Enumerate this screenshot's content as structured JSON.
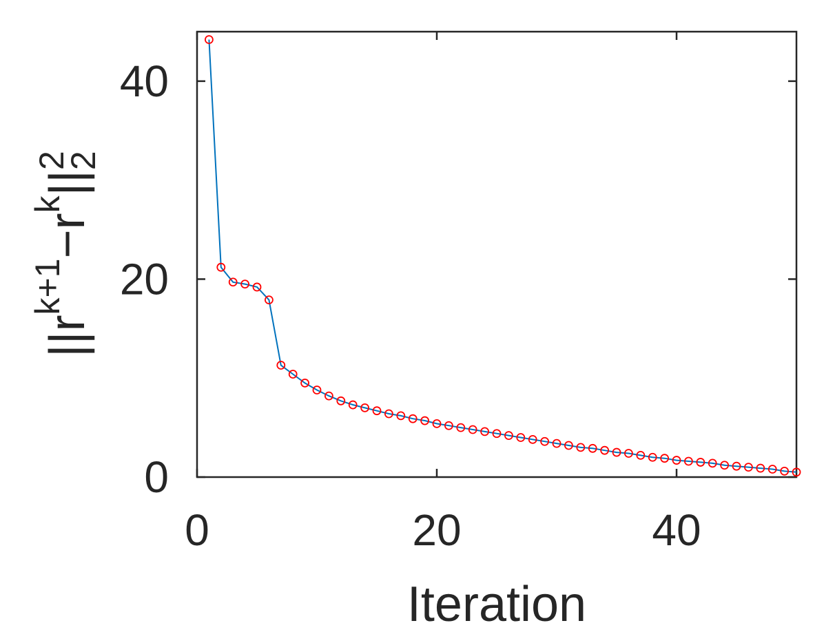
{
  "chart_data": {
    "type": "line",
    "xlabel": "Iteration",
    "ylabel": {
      "base": "||r",
      "sup1": "k+1",
      "mid": "−r",
      "sup2": "k",
      "end": "||",
      "sub": "2",
      "sup3": "2"
    },
    "xlim": [
      0,
      50
    ],
    "ylim": [
      0,
      45
    ],
    "x_ticks": [
      0,
      20,
      40
    ],
    "y_ticks": [
      0,
      20,
      40
    ],
    "grid": false,
    "line_color": "#0072BD",
    "marker_color": "#FF0000",
    "marker": "circle",
    "series": [
      {
        "x": [
          1,
          2,
          3,
          4,
          5,
          6,
          7,
          8,
          9,
          10,
          11,
          12,
          13,
          14,
          15,
          16,
          17,
          18,
          19,
          20,
          21,
          22,
          23,
          24,
          25,
          26,
          27,
          28,
          29,
          30,
          31,
          32,
          33,
          34,
          35,
          36,
          37,
          38,
          39,
          40,
          41,
          42,
          43,
          44,
          45,
          46,
          47,
          48,
          49,
          50
        ],
        "values": [
          44.2,
          21.2,
          19.7,
          19.5,
          19.2,
          17.9,
          11.3,
          10.4,
          9.5,
          8.8,
          8.2,
          7.7,
          7.3,
          7.0,
          6.7,
          6.4,
          6.2,
          5.9,
          5.7,
          5.4,
          5.2,
          5.0,
          4.8,
          4.6,
          4.4,
          4.2,
          4.0,
          3.8,
          3.6,
          3.4,
          3.2,
          3.0,
          2.9,
          2.7,
          2.5,
          2.4,
          2.2,
          2.0,
          1.9,
          1.7,
          1.6,
          1.5,
          1.4,
          1.2,
          1.1,
          1.0,
          0.9,
          0.8,
          0.6,
          0.5
        ]
      }
    ]
  }
}
